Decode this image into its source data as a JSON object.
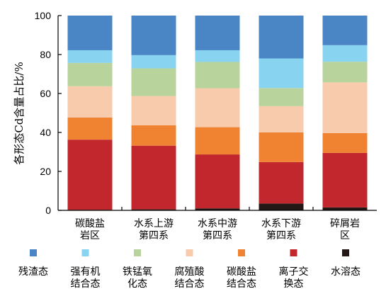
{
  "chart_data": {
    "type": "bar",
    "stacked": true,
    "title": "",
    "xlabel": "",
    "ylabel": "各形态Cd含量占比/%",
    "ylim": [
      0,
      100
    ],
    "yticks": [
      0,
      20,
      40,
      60,
      80,
      100
    ],
    "categories": [
      [
        "碳酸盐",
        "岩区"
      ],
      [
        "水系上游",
        "第四系"
      ],
      [
        "水系中游",
        "第四系"
      ],
      [
        "水系下游",
        "第四系"
      ],
      [
        "碎屑岩",
        "区"
      ]
    ],
    "series": [
      {
        "name": [
          "水溶态"
        ],
        "color": "#231815",
        "values": [
          0.3,
          0.5,
          1.0,
          3.5,
          1.5
        ]
      },
      {
        "name": [
          "离子交",
          "换态"
        ],
        "color": "#c1272d",
        "values": [
          36.0,
          32.7,
          27.7,
          21.3,
          28.0
        ]
      },
      {
        "name": [
          "碳酸盐",
          "结合态"
        ],
        "color": "#f08332",
        "values": [
          11.4,
          10.5,
          14.0,
          15.2,
          10.2
        ]
      },
      {
        "name": [
          "腐殖酸",
          "结合态"
        ],
        "color": "#f8cbad",
        "values": [
          16.0,
          15.0,
          20.0,
          13.5,
          26.0
        ]
      },
      {
        "name": [
          "铁锰氧",
          "化态"
        ],
        "color": "#b9d39c",
        "values": [
          12.0,
          14.2,
          13.5,
          9.3,
          10.6
        ]
      },
      {
        "name": [
          "强有机",
          "结合态"
        ],
        "color": "#87d3f0",
        "values": [
          6.5,
          6.8,
          6.0,
          15.2,
          8.5
        ]
      },
      {
        "name": [
          "残渣态"
        ],
        "color": "#4a86c5",
        "values": [
          17.8,
          20.3,
          17.8,
          22.0,
          15.2
        ]
      }
    ],
    "legend_order": [
      "残渣态",
      "强有机结合态",
      "铁锰氧化态",
      "腐殖酸结合态",
      "碳酸盐结合态",
      "离子交换态",
      "水溶态"
    ],
    "legend_position": "bottom",
    "grid": false
  }
}
